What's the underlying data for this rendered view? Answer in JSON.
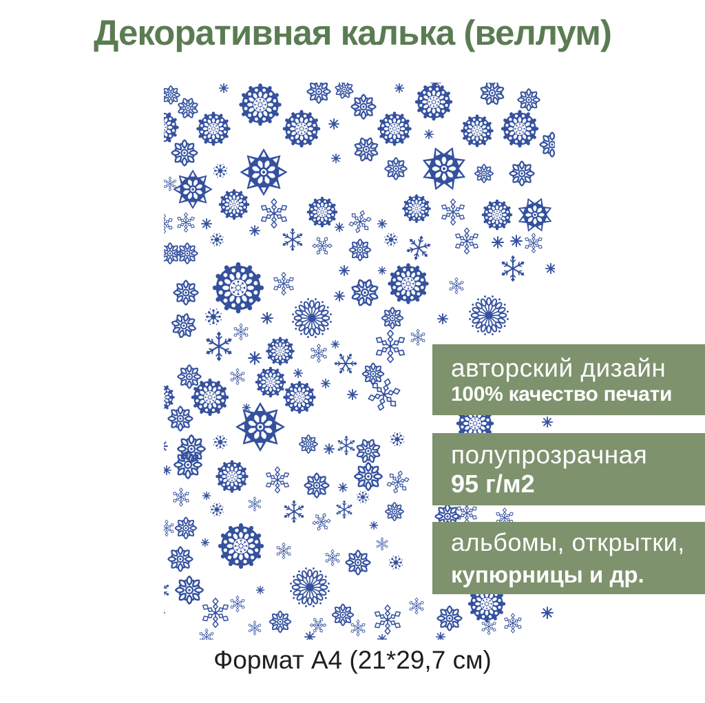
{
  "title": "Декоративная калька (веллум)",
  "footer_caption": "Формат А4 (21*29,7 см)",
  "colors": {
    "title_green": "#5b7c53",
    "banner_green": "#7e926d",
    "snowflake_blue": "#34519f",
    "banner_text": "#ffffff",
    "caption_text": "#1e1e1e",
    "sheet_background": "#ffffff"
  },
  "banners": [
    {
      "line1": "авторский дизайн",
      "line2": "100% качество печати"
    },
    {
      "line1": "полупрозрачная",
      "line2": "95 г/м2"
    },
    {
      "line1": "альбомы, открытки,",
      "line2": "купюрницы и др."
    }
  ],
  "sheet": {
    "description": "A4 vellum sheet preview covered with blue snowflakes",
    "snowflake_types": {
      "A": "large-8-point-mandala",
      "B": "lacy-doily-medallion",
      "C": "teardrop-sunburst",
      "D": "dense-8-petal-flake",
      "E": "classic-6-arm-branch-flake",
      "F": "diamond-6-arm-flake",
      "G": "tiny-8-point-star",
      "H": "dense-dot-flake"
    },
    "snowflakes": [
      [
        "D",
        10,
        18,
        30,
        0
      ],
      [
        "D",
        35,
        37,
        34,
        22
      ],
      [
        "G",
        87,
        8,
        16,
        0
      ],
      [
        "B",
        140,
        32,
        62,
        0
      ],
      [
        "D",
        225,
        13,
        38,
        0
      ],
      [
        "D",
        262,
        10,
        30,
        15
      ],
      [
        "G",
        342,
        8,
        16,
        0
      ],
      [
        "D",
        290,
        35,
        40,
        0
      ],
      [
        "B",
        392,
        28,
        55,
        0
      ],
      [
        "D",
        477,
        15,
        40,
        22
      ],
      [
        "D",
        530,
        25,
        36,
        0
      ],
      [
        "G",
        395,
        0,
        18,
        0
      ],
      [
        "B",
        72,
        67,
        50,
        0
      ],
      [
        "B",
        200,
        67,
        55,
        0
      ],
      [
        "G",
        247,
        60,
        18,
        0
      ],
      [
        "B",
        335,
        67,
        50,
        0
      ],
      [
        "G",
        385,
        75,
        16,
        0
      ],
      [
        "B",
        455,
        70,
        48,
        0
      ],
      [
        "B",
        517,
        67,
        55,
        0
      ],
      [
        "D",
        564,
        90,
        40,
        0
      ],
      [
        "B",
        -3,
        65,
        50,
        0
      ],
      [
        "D",
        30,
        102,
        42,
        0
      ],
      [
        "A",
        145,
        130,
        72,
        0
      ],
      [
        "D",
        294,
        97,
        40,
        22
      ],
      [
        "G",
        250,
        110,
        16,
        0
      ],
      [
        "D",
        337,
        125,
        36,
        0
      ],
      [
        "A",
        407,
        125,
        70,
        22
      ],
      [
        "D",
        465,
        132,
        30,
        0
      ],
      [
        "D",
        520,
        132,
        40,
        0
      ],
      [
        "H",
        82,
        128,
        25,
        0
      ],
      [
        "F",
        9,
        147,
        22,
        0
      ],
      [
        "A",
        42,
        155,
        60,
        0
      ],
      [
        "B",
        102,
        177,
        45,
        0
      ],
      [
        "F",
        160,
        190,
        45,
        0
      ],
      [
        "B",
        230,
        188,
        45,
        0
      ],
      [
        "G",
        255,
        210,
        16,
        0
      ],
      [
        "F",
        285,
        202,
        35,
        15
      ],
      [
        "G",
        317,
        205,
        16,
        0
      ],
      [
        "B",
        367,
        183,
        42,
        0
      ],
      [
        "F",
        420,
        188,
        40,
        0
      ],
      [
        "B",
        484,
        192,
        45,
        0
      ],
      [
        "A",
        539,
        192,
        55,
        22
      ],
      [
        "F",
        32,
        203,
        30,
        0
      ],
      [
        "G",
        62,
        205,
        18,
        0
      ],
      [
        "F",
        0,
        205,
        30,
        0
      ],
      [
        "H",
        77,
        228,
        24,
        0
      ],
      [
        "G",
        132,
        215,
        18,
        0
      ],
      [
        "E",
        187,
        228,
        35,
        0
      ],
      [
        "F",
        230,
        237,
        30,
        30
      ],
      [
        "G",
        262,
        273,
        18,
        0
      ],
      [
        "D",
        285,
        243,
        35,
        0
      ],
      [
        "G",
        317,
        273,
        14,
        0
      ],
      [
        "H",
        330,
        228,
        24,
        0
      ],
      [
        "E",
        370,
        240,
        38,
        15
      ],
      [
        "F",
        440,
        230,
        40,
        0
      ],
      [
        "G",
        485,
        232,
        20,
        0
      ],
      [
        "D",
        9,
        248,
        34,
        0
      ],
      [
        "D",
        34,
        248,
        34,
        0
      ],
      [
        "E",
        507,
        270,
        40,
        0
      ],
      [
        "G",
        512,
        230,
        20,
        0
      ],
      [
        "F",
        537,
        233,
        30,
        0
      ],
      [
        "G",
        562,
        270,
        18,
        0
      ],
      [
        "D",
        32,
        305,
        40,
        0
      ],
      [
        "B",
        108,
        298,
        75,
        0
      ],
      [
        "F",
        174,
        292,
        35,
        0
      ],
      [
        "C",
        215,
        342,
        65,
        0
      ],
      [
        "G",
        255,
        310,
        18,
        0
      ],
      [
        "D",
        292,
        305,
        45,
        22
      ],
      [
        "B",
        355,
        292,
        60,
        0
      ],
      [
        "F",
        425,
        295,
        25,
        0
      ],
      [
        "C",
        472,
        338,
        65,
        0
      ],
      [
        "H",
        72,
        340,
        30,
        0
      ],
      [
        "G",
        150,
        342,
        20,
        0
      ],
      [
        "D",
        332,
        342,
        35,
        0
      ],
      [
        "G",
        405,
        343,
        18,
        0
      ],
      [
        "D",
        29,
        353,
        40,
        15
      ],
      [
        "F",
        112,
        362,
        25,
        0
      ],
      [
        "E",
        80,
        383,
        45,
        0
      ],
      [
        "B",
        169,
        390,
        42,
        0
      ],
      [
        "F",
        225,
        393,
        28,
        0
      ],
      [
        "G",
        249,
        380,
        14,
        0
      ],
      [
        "E",
        264,
        408,
        35,
        30
      ],
      [
        "F",
        329,
        383,
        50,
        0
      ],
      [
        "F",
        369,
        370,
        25,
        0
      ],
      [
        "G",
        132,
        400,
        22,
        0
      ],
      [
        "G",
        195,
        422,
        16,
        0
      ],
      [
        "D",
        304,
        423,
        35,
        0
      ],
      [
        "G",
        235,
        437,
        16,
        0
      ],
      [
        "G",
        274,
        453,
        18,
        0
      ],
      [
        "D",
        37,
        427,
        38,
        0
      ],
      [
        "F",
        107,
        427,
        25,
        0
      ],
      [
        "B",
        155,
        435,
        45,
        0
      ],
      [
        "B",
        67,
        457,
        55,
        0
      ],
      [
        "B",
        197,
        457,
        48,
        0
      ],
      [
        "G",
        120,
        472,
        14,
        0
      ],
      [
        "F",
        320,
        453,
        50,
        15
      ],
      [
        "B",
        -4,
        457,
        40,
        0
      ],
      [
        "B",
        452,
        495,
        55,
        0
      ],
      [
        "G",
        557,
        493,
        18,
        0
      ],
      [
        "D",
        24,
        488,
        40,
        0
      ],
      [
        "A",
        140,
        500,
        75,
        0
      ],
      [
        "D",
        210,
        525,
        30,
        0
      ],
      [
        "G",
        240,
        532,
        18,
        0
      ],
      [
        "E",
        265,
        527,
        30,
        0
      ],
      [
        "D",
        297,
        535,
        40,
        22
      ],
      [
        "H",
        82,
        522,
        25,
        0
      ],
      [
        "D",
        40,
        532,
        45,
        0
      ],
      [
        "H",
        339,
        518,
        25,
        0
      ],
      [
        "G",
        -3,
        528,
        20,
        0
      ],
      [
        "D",
        35,
        555,
        45,
        0
      ],
      [
        "G",
        4,
        563,
        16,
        0
      ],
      [
        "B",
        99,
        572,
        48,
        0
      ],
      [
        "F",
        165,
        577,
        40,
        0
      ],
      [
        "D",
        222,
        585,
        40,
        0
      ],
      [
        "G",
        260,
        588,
        16,
        0
      ],
      [
        "D",
        297,
        572,
        45,
        0
      ],
      [
        "F",
        340,
        580,
        35,
        15
      ],
      [
        "D",
        412,
        630,
        40,
        0
      ],
      [
        "F",
        495,
        632,
        30,
        0
      ],
      [
        "F",
        25,
        602,
        28,
        0
      ],
      [
        "G",
        62,
        600,
        14,
        0
      ],
      [
        "F",
        132,
        612,
        22,
        0
      ],
      [
        "H",
        77,
        620,
        24,
        0
      ],
      [
        "E",
        189,
        623,
        35,
        0
      ],
      [
        "F",
        229,
        638,
        28,
        22
      ],
      [
        "E",
        262,
        620,
        28,
        0
      ],
      [
        "H",
        289,
        602,
        22,
        0
      ],
      [
        "D",
        335,
        623,
        30,
        0
      ],
      [
        "G",
        305,
        643,
        14,
        0
      ],
      [
        "F",
        440,
        625,
        35,
        0
      ],
      [
        "F",
        4,
        647,
        25,
        0
      ],
      [
        "D",
        32,
        647,
        35,
        0
      ],
      [
        "G",
        60,
        668,
        14,
        0
      ],
      [
        "B",
        112,
        673,
        67,
        0
      ],
      [
        "D",
        24,
        692,
        40,
        0
      ],
      [
        "G",
        140,
        737,
        14,
        0
      ],
      [
        "F",
        174,
        680,
        25,
        0
      ],
      [
        "C",
        212,
        733,
        65,
        0
      ],
      [
        "F",
        245,
        690,
        25,
        0
      ],
      [
        "D",
        282,
        697,
        40,
        0
      ],
      [
        "H",
        337,
        697,
        25,
        0
      ],
      [
        "F",
        317,
        670,
        20,
        0
      ],
      [
        "D",
        37,
        737,
        45,
        0
      ],
      [
        "F",
        75,
        770,
        45,
        0
      ],
      [
        "F",
        107,
        757,
        25,
        0
      ],
      [
        "F",
        132,
        792,
        22,
        0
      ],
      [
        "D",
        169,
        783,
        35,
        0
      ],
      [
        "F",
        224,
        788,
        25,
        30
      ],
      [
        "D",
        260,
        773,
        35,
        0
      ],
      [
        "F",
        282,
        792,
        25,
        0
      ],
      [
        "F",
        325,
        780,
        45,
        0
      ],
      [
        "F",
        367,
        760,
        25,
        0
      ],
      [
        "D",
        415,
        778,
        40,
        0
      ],
      [
        "F",
        472,
        790,
        25,
        0
      ],
      [
        "B",
        469,
        757,
        55,
        0
      ],
      [
        "E",
        -5,
        737,
        30,
        0
      ],
      [
        "G",
        -5,
        770,
        16,
        0
      ],
      [
        "F",
        62,
        805,
        25,
        0
      ],
      [
        "G",
        212,
        805,
        18,
        0
      ],
      [
        "G",
        317,
        808,
        16,
        0
      ],
      [
        "F",
        507,
        785,
        30,
        0
      ],
      [
        "G",
        557,
        770,
        20,
        0
      ],
      [
        "G",
        402,
        805,
        16,
        0
      ]
    ]
  }
}
